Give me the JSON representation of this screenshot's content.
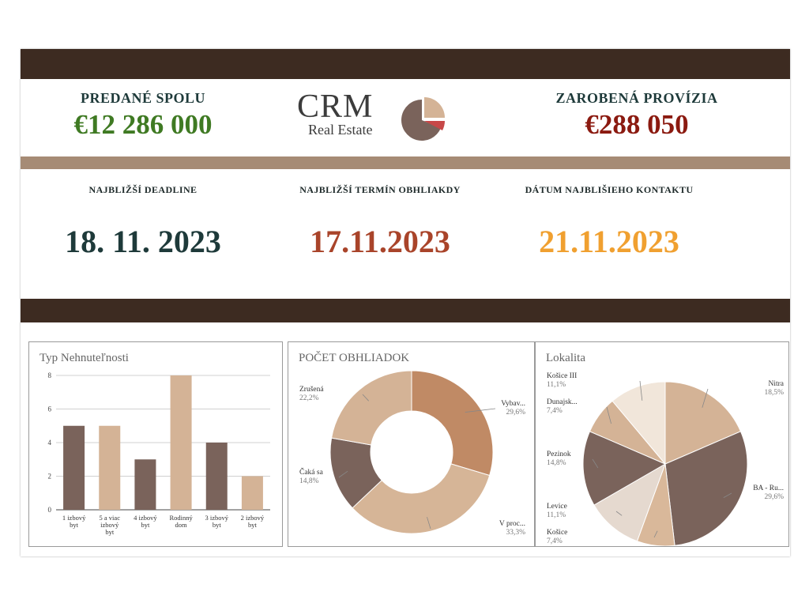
{
  "header": {
    "sold_total_label": "PREDANÉ SPOLU",
    "sold_total_value": "€12 286 000",
    "commission_label": "ZAROBENÁ PROVÍZIA",
    "commission_value": "€288 050",
    "logo_main": "CRM",
    "logo_sub": "Real Estate"
  },
  "deadlines": {
    "deadline_label": "NAJBLIŽŠÍ DEADLINE",
    "deadline_value": "18. 11. 2023",
    "viewing_label": "NAJBLIŽŠÍ TERMÍN OBHLIAKDY",
    "viewing_value": "17.11.2023",
    "contact_label": "DÁTUM NAJBLIŠIEHO KONTAKTU",
    "contact_value": "21.11.2023"
  },
  "colors": {
    "dark_band": "#3d2b21",
    "tan_band": "#a68b75",
    "green": "#3f7a23",
    "dark_red": "#8b1a10",
    "rust": "#a9442a",
    "orange": "#f0a030",
    "navy": "#1e3a3a"
  },
  "chart_data": [
    {
      "type": "bar",
      "title": "Typ Nehnuteľnosti",
      "categories": [
        [
          "1 izbový",
          "byt"
        ],
        [
          "5 a viac",
          "izbový",
          "byt"
        ],
        [
          "4 izbový",
          "byt"
        ],
        [
          "Rodinný",
          "dom"
        ],
        [
          "3 izbový",
          "byt"
        ],
        [
          "2 izbový",
          "byt"
        ]
      ],
      "values": [
        5,
        5,
        3,
        8,
        4,
        2
      ],
      "bar_colors": [
        "#7a635b",
        "#d4b396",
        "#7a635b",
        "#d4b396",
        "#7a635b",
        "#d4b396"
      ],
      "ylim": [
        0,
        8
      ],
      "yticks": [
        0,
        2,
        4,
        6,
        8
      ],
      "grid": true
    },
    {
      "type": "pie",
      "donut": true,
      "title": "POČET OBHLIADOK",
      "slices": [
        {
          "label": "Vybav...",
          "value": 29.6,
          "pct": "29,6%",
          "color": "#c08a65"
        },
        {
          "label": "V proc...",
          "value": 33.3,
          "pct": "33,3%",
          "color": "#d6b597"
        },
        {
          "label": "Čaká sa",
          "value": 14.8,
          "pct": "14,8%",
          "color": "#7a635b"
        },
        {
          "label": "Zrušená",
          "value": 22.2,
          "pct": "22,2%",
          "color": "#d4b396"
        }
      ]
    },
    {
      "type": "pie",
      "donut": false,
      "title": "Lokalita",
      "slices": [
        {
          "label": "Nitra",
          "value": 18.5,
          "pct": "18,5%",
          "color": "#d4b396"
        },
        {
          "label": "BA - Ru...",
          "value": 29.6,
          "pct": "29,6%",
          "color": "#7a635b"
        },
        {
          "label": "Košice",
          "value": 7.4,
          "pct": "7,4%",
          "color": "#d9b89a"
        },
        {
          "label": "Levice",
          "value": 11.1,
          "pct": "11,1%",
          "color": "#e5d9cf"
        },
        {
          "label": "Pezinok",
          "value": 14.8,
          "pct": "14,8%",
          "color": "#7a635b"
        },
        {
          "label": "Dunajsk...",
          "value": 7.4,
          "pct": "7,4%",
          "color": "#d4b396"
        },
        {
          "label": "Košice III",
          "value": 11.1,
          "pct": "11,1%",
          "color": "#f1e6da"
        }
      ]
    }
  ]
}
